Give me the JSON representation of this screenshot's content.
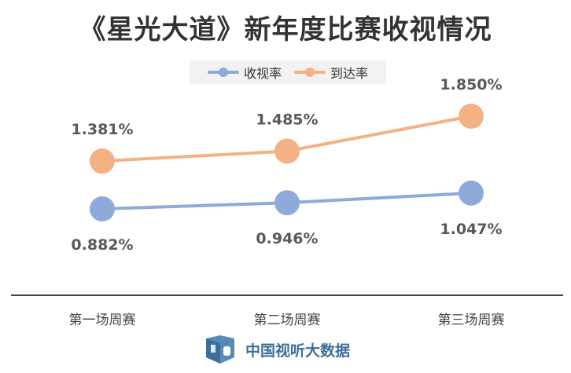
{
  "header": {
    "title": "《星光大道》新年度比赛收视情况"
  },
  "chart_data": {
    "type": "line",
    "title": "《星光大道》新年度比赛收视情况",
    "categories": [
      "第一场周赛",
      "第二场周赛",
      "第三场周赛"
    ],
    "series": [
      {
        "name": "收视率",
        "values": [
          0.882,
          0.946,
          1.047
        ],
        "labels": [
          "0.882%",
          "0.946%",
          "1.047%"
        ],
        "color": "#8eaadb",
        "label_position": "below"
      },
      {
        "name": "到达率",
        "values": [
          1.381,
          1.485,
          1.85
        ],
        "labels": [
          "1.381%",
          "1.485%",
          "1.850%"
        ],
        "color": "#f4b183",
        "label_position": "above"
      }
    ],
    "legend": "top-center",
    "grid": false,
    "xlabel": "",
    "ylabel": ""
  },
  "footer": {
    "source_text": "中国视听大数据",
    "logo_icon": "cvb-logo-icon"
  }
}
